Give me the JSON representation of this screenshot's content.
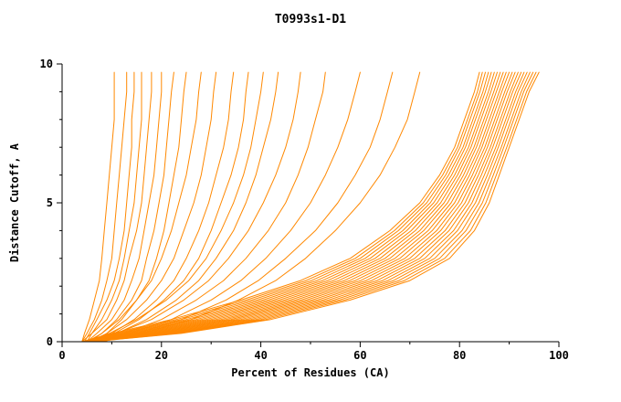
{
  "chart_data": {
    "type": "line",
    "title": "T0993s1-D1",
    "xlabel": "Percent of Residues (CA)",
    "ylabel": "Distance Cutoff, A",
    "xlim": [
      0,
      100
    ],
    "ylim": [
      0,
      10
    ],
    "x_major_ticks": [
      0,
      20,
      40,
      60,
      80,
      100
    ],
    "x_minor_ticks": [
      10,
      30,
      50,
      70,
      90
    ],
    "y_major_ticks": [
      0,
      5,
      10
    ],
    "y_minor_ticks": [
      1,
      2,
      3,
      4,
      6,
      7,
      8,
      9
    ],
    "grid": false,
    "legend": "none",
    "line_color": "#ff8800",
    "axis_color": "#000000",
    "series_format": "each series is the list of x (percent of residues) values at the shared y_levels (distance cutoff, A); curves estimated from plot",
    "y_levels": [
      0,
      0.3,
      0.8,
      1.5,
      2.2,
      3,
      4,
      5,
      6,
      7,
      8,
      9,
      9.7
    ],
    "series": [
      [
        4,
        4.5,
        5.5,
        6.5,
        7.5,
        8,
        8.5,
        9,
        9.5,
        10,
        10.5,
        10.5,
        10.5
      ],
      [
        4,
        5,
        6.5,
        8,
        9,
        10,
        10.5,
        11,
        11.5,
        12,
        12.5,
        13,
        13
      ],
      [
        4.5,
        5.5,
        7,
        9,
        10.5,
        11.5,
        12.5,
        13,
        13.5,
        14,
        14,
        14.5,
        14.5
      ],
      [
        5,
        6,
        8,
        10,
        11.5,
        12.5,
        13.5,
        14.5,
        15,
        15.5,
        16,
        16,
        16
      ],
      [
        4,
        6,
        9,
        11,
        12.5,
        13.5,
        15,
        16,
        16.5,
        17,
        17.5,
        18,
        18
      ],
      [
        5,
        7,
        10,
        12.5,
        14,
        15.5,
        16.5,
        17.5,
        18.5,
        19,
        19.5,
        20,
        20
      ],
      [
        5.5,
        8,
        11,
        14,
        16,
        17,
        18.5,
        19.5,
        20.5,
        21,
        21.5,
        22,
        22.5
      ],
      [
        6,
        9,
        12,
        15,
        17.5,
        19,
        20.5,
        21.5,
        22.5,
        23.5,
        24,
        24.5,
        25
      ],
      [
        5,
        8,
        11.5,
        15,
        18,
        20,
        22,
        23.5,
        25,
        26,
        27,
        27.5,
        28
      ],
      [
        5.5,
        9,
        13,
        17,
        20,
        22.5,
        24.5,
        26.5,
        28,
        29,
        30,
        30.5,
        31
      ],
      [
        6,
        10,
        14.5,
        19,
        22.5,
        25,
        27.5,
        29.5,
        31,
        32.5,
        33.5,
        34,
        34.5
      ],
      [
        6,
        10.5,
        15.5,
        20.5,
        24.5,
        27.5,
        30,
        32,
        34,
        35.5,
        36.5,
        37,
        37.5
      ],
      [
        5,
        9.5,
        15,
        21,
        25.5,
        29,
        32,
        34.5,
        36.5,
        38,
        39,
        40,
        40.5
      ],
      [
        6.5,
        11,
        17,
        23,
        27.5,
        31,
        34.5,
        37,
        39,
        40.5,
        42,
        43,
        43.5
      ],
      [
        6,
        11,
        18,
        24.5,
        29.5,
        33.5,
        37.5,
        40.5,
        43,
        45,
        46.5,
        47.5,
        48
      ],
      [
        7,
        12.5,
        20,
        27,
        32.5,
        37,
        41.5,
        45,
        47.5,
        49.5,
        51,
        52.5,
        53
      ],
      [
        7,
        13.5,
        22,
        30,
        36,
        41,
        46,
        50,
        53,
        55.5,
        57.5,
        59,
        60
      ],
      [
        8,
        15,
        24,
        33,
        39.5,
        45,
        51,
        55.5,
        59,
        62,
        64,
        65.5,
        66.5
      ],
      [
        8,
        16,
        26,
        35.5,
        43,
        49,
        55,
        60,
        64,
        67,
        69.5,
        71,
        72
      ],
      [
        4,
        10,
        22,
        36,
        48,
        58,
        66,
        72,
        76,
        79,
        81,
        83,
        84
      ],
      [
        4.1,
        10.7,
        23,
        37.1,
        49.1,
        59,
        66.9,
        72.7,
        76.6,
        79.6,
        81.6,
        83.6,
        84.6
      ],
      [
        4.2,
        11.4,
        24,
        38.2,
        50.2,
        60,
        67.7,
        73.4,
        77.2,
        80.1,
        82.1,
        84.1,
        85.2
      ],
      [
        4.3,
        12.1,
        25,
        39.3,
        51.3,
        61,
        68.6,
        74.1,
        77.8,
        80.7,
        82.7,
        84.7,
        85.8
      ],
      [
        4.4,
        12.8,
        26,
        40.4,
        52.4,
        62,
        69.4,
        74.8,
        78.4,
        81.2,
        83.2,
        85.2,
        86.4
      ],
      [
        4.5,
        13.5,
        27,
        41.5,
        53.5,
        63,
        70.3,
        75.5,
        79,
        81.8,
        83.8,
        85.8,
        87
      ],
      [
        4.6,
        14.2,
        28,
        42.6,
        54.6,
        64,
        71.1,
        76.2,
        79.6,
        82.3,
        84.3,
        86.3,
        87.6
      ],
      [
        4.7,
        14.9,
        29,
        43.7,
        55.7,
        65,
        72,
        76.9,
        80.2,
        82.9,
        84.9,
        86.9,
        88.2
      ],
      [
        4.8,
        15.6,
        30,
        44.8,
        56.8,
        66,
        72.8,
        77.6,
        80.8,
        83.4,
        85.4,
        87.4,
        88.8
      ],
      [
        4.9,
        16.3,
        31,
        45.9,
        57.9,
        67,
        73.7,
        78.3,
        81.4,
        84,
        86,
        88,
        89.4
      ],
      [
        5,
        17,
        32,
        47,
        59,
        68,
        74.5,
        79,
        82,
        84.5,
        86.5,
        88.5,
        90
      ],
      [
        5.1,
        17.7,
        33,
        48.1,
        60.1,
        69,
        75.4,
        79.7,
        82.6,
        85.1,
        87.1,
        89.1,
        90.6
      ],
      [
        5.2,
        18.4,
        34,
        49.2,
        61.2,
        70,
        76.2,
        80.4,
        83.2,
        85.6,
        87.6,
        89.6,
        91.2
      ],
      [
        5.3,
        19.1,
        35,
        50.3,
        62.3,
        71,
        77.1,
        81.1,
        83.8,
        86.2,
        88.2,
        90.2,
        91.8
      ],
      [
        5.4,
        19.8,
        36,
        51.4,
        63.4,
        72,
        77.9,
        81.8,
        84.4,
        86.7,
        88.7,
        90.7,
        92.4
      ],
      [
        5.5,
        20.5,
        37,
        52.5,
        64.5,
        73,
        78.8,
        82.5,
        85,
        87.3,
        89.3,
        91.3,
        93
      ],
      [
        5.6,
        21.2,
        38,
        53.6,
        65.6,
        74,
        79.6,
        83.2,
        85.6,
        87.8,
        89.8,
        91.8,
        93.6
      ],
      [
        5.7,
        21.9,
        39,
        54.7,
        66.7,
        75,
        80.5,
        83.9,
        86.2,
        88.4,
        90.4,
        92.4,
        94.2
      ],
      [
        5.8,
        22.6,
        40,
        55.8,
        67.8,
        76,
        81.3,
        84.6,
        86.8,
        88.9,
        90.9,
        92.9,
        94.8
      ],
      [
        5.9,
        23.3,
        41,
        56.9,
        68.9,
        77,
        82.2,
        85.3,
        87.4,
        89.5,
        91.5,
        93.5,
        95.4
      ],
      [
        6,
        24,
        42,
        58,
        70,
        78,
        83,
        86,
        88,
        90,
        92,
        94,
        96
      ]
    ]
  }
}
